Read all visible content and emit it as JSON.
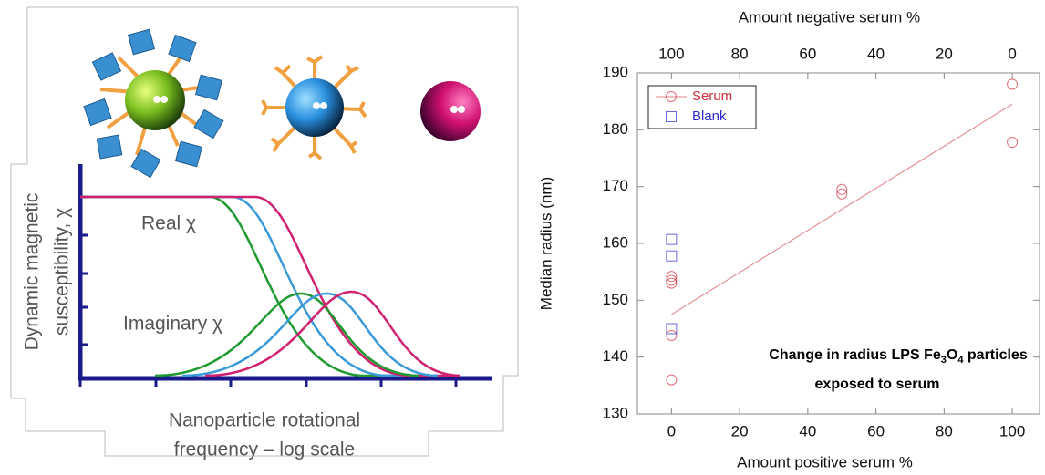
{
  "diagram": {
    "y_label_lines": [
      "Dynamic magnetic",
      "susceptibility, χ"
    ],
    "real_label": "Real χ",
    "imaginary_label": "Imaginary χ",
    "x_label_lines": [
      "Nanoparticle rotational",
      "frequency – log scale"
    ]
  },
  "chart_data": {
    "type": "scatter",
    "x_label": "Amount positive serum %",
    "x2_label": "Amount negative serum %",
    "y_label": "Median radius (nm)",
    "xlim": [
      -10,
      108
    ],
    "xticks": [
      0,
      20,
      40,
      60,
      80,
      100
    ],
    "x2lim": [
      110,
      -8
    ],
    "x2ticks": [
      100,
      80,
      60,
      40,
      20,
      0
    ],
    "ylim": [
      130,
      190
    ],
    "yticks": [
      130,
      140,
      150,
      160,
      170,
      180,
      190
    ],
    "legend": "upper left",
    "annotation": {
      "line1": [
        "Change in radius LPS Fe",
        "3",
        "O",
        "4",
        " particles"
      ],
      "line2": "exposed to serum"
    },
    "series": [
      {
        "name": "Serum",
        "color": "#d0303c",
        "marker": "circle",
        "x": [
          0,
          0,
          0,
          0,
          0,
          50,
          50,
          100,
          100
        ],
        "values": [
          136,
          143.8,
          153,
          153.5,
          154.2,
          168.7,
          169.5,
          188,
          177.8
        ],
        "trend_x": [
          0,
          100
        ],
        "trend": [
          147.5,
          184.5
        ]
      },
      {
        "name": "Blank",
        "color": "#2a2ad0",
        "marker": "square",
        "x": [
          0,
          0,
          0
        ],
        "values": [
          160.7,
          157.8,
          145
        ]
      }
    ]
  }
}
